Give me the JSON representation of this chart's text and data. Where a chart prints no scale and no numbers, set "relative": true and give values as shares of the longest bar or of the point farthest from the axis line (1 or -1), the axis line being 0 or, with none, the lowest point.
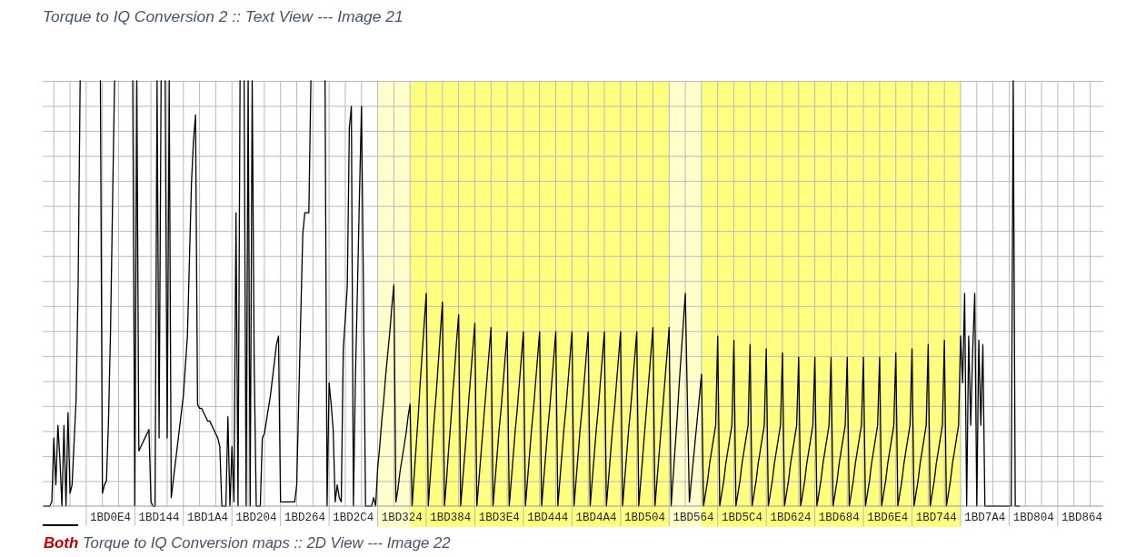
{
  "chart_data": {
    "type": "line",
    "title": "Torque to IQ Conversion 2 :: Text View --- Image 21",
    "annotations": [
      "Both Torque to IQ Conversion maps :: 2D View --- Image 22"
    ],
    "relative": true,
    "color": "#000000",
    "marker": "none",
    "line_style": "solid",
    "grid": true,
    "tick_labels": "x",
    "categories": [
      null,
      null,
      null,
      null,
      null,
      null,
      null,
      null,
      null,
      null,
      null,
      null,
      null,
      null,
      null,
      null,
      null,
      null,
      null,
      null,
      null,
      null,
      null,
      null,
      null,
      null,
      null,
      null,
      null,
      null,
      null,
      null,
      null,
      "1BD0E4",
      null,
      null,
      null,
      null,
      null,
      null,
      null,
      null,
      null,
      null,
      null,
      null,
      null,
      null,
      null,
      null,
      null,
      null,
      null,
      null,
      null,
      null,
      null,
      "1BD144",
      null,
      null,
      null,
      null,
      null,
      null,
      null,
      null,
      null,
      null,
      null,
      null,
      null,
      null,
      null,
      null,
      null,
      null,
      null,
      null,
      null,
      null,
      null,
      "1BD1A4",
      null,
      null,
      null,
      null,
      null,
      null,
      null,
      null,
      null,
      null,
      null,
      null,
      null,
      null,
      null,
      null,
      null,
      null,
      null,
      null,
      null,
      null,
      null,
      "1BD204",
      null,
      null,
      null,
      null,
      null,
      null,
      null,
      null,
      null,
      null,
      null,
      null,
      null,
      null,
      null,
      null,
      null,
      null,
      null,
      null,
      null,
      null,
      null,
      "1BD264",
      null,
      null,
      null,
      null,
      null,
      null,
      null,
      null,
      null,
      null,
      null,
      null,
      null,
      null,
      null,
      null,
      null,
      null,
      null,
      null,
      null,
      null,
      null,
      "1BD2C4",
      null,
      null,
      null,
      null,
      null,
      null,
      null,
      null,
      null,
      null,
      null,
      null,
      null,
      null,
      null,
      null,
      null,
      null,
      null,
      null,
      null,
      null,
      null,
      "1BD324",
      null,
      null,
      null,
      null,
      null,
      null,
      null,
      null,
      null,
      null,
      null,
      null,
      null,
      null,
      null,
      null,
      null,
      null,
      null,
      null,
      null,
      null,
      null,
      "1BD384",
      null,
      null,
      null,
      null,
      null,
      null,
      null,
      null,
      null,
      null,
      null,
      null,
      null,
      null,
      null,
      null,
      null,
      null,
      null,
      null,
      null,
      null,
      null,
      "1BD3E4",
      null,
      null,
      null,
      null,
      null,
      null,
      null,
      null,
      null,
      null,
      null,
      null,
      null,
      null,
      null,
      null,
      null,
      null,
      null,
      null,
      null,
      null,
      null,
      "1BD444",
      null,
      null,
      null,
      null,
      null,
      null,
      null,
      null,
      null,
      null,
      null,
      null,
      null,
      null,
      null,
      null,
      null,
      null,
      null,
      null,
      null,
      null,
      null,
      "1BD4A4",
      null,
      null,
      null,
      null,
      null,
      null,
      null,
      null,
      null,
      null,
      null,
      null,
      null,
      null,
      null,
      null,
      null,
      null,
      null,
      null,
      null,
      null,
      null,
      "1BD504",
      null,
      null,
      null,
      null,
      null,
      null,
      null,
      null,
      null,
      null,
      null,
      null,
      null,
      null,
      null,
      null,
      null,
      null,
      null,
      null,
      null,
      null,
      null,
      "1BD564",
      null,
      null,
      null,
      null,
      null,
      null,
      null,
      null,
      null,
      null,
      null,
      null,
      null,
      null,
      null,
      null,
      null,
      null,
      null,
      null,
      null,
      null,
      null,
      "1BD5C4",
      null,
      null,
      null,
      null,
      null,
      null,
      null,
      null,
      null,
      null,
      null,
      null,
      null,
      null,
      null,
      null,
      null,
      null,
      null,
      null,
      null,
      null,
      null,
      "1BD624",
      null,
      null,
      null,
      null,
      null,
      null,
      null,
      null,
      null,
      null,
      null,
      null,
      null,
      null,
      null,
      null,
      null,
      null,
      null,
      null,
      null,
      null,
      null,
      "1BD684",
      null,
      null,
      null,
      null,
      null,
      null,
      null,
      null,
      null,
      null,
      null,
      null,
      null,
      null,
      null,
      null,
      null,
      null,
      null,
      null,
      null,
      null,
      null,
      "1BD6E4",
      null,
      null,
      null,
      null,
      null,
      null,
      null,
      null,
      null,
      null,
      null,
      null,
      null,
      null,
      null,
      null,
      null,
      null,
      null,
      null,
      null,
      null,
      null,
      "1BD744",
      null,
      null,
      null,
      null,
      null,
      null,
      null,
      null,
      null,
      null,
      null,
      null,
      null,
      null,
      null,
      null,
      null,
      null,
      null,
      null,
      null,
      null,
      null,
      "1BD7A4",
      null,
      null,
      null,
      null,
      null,
      null,
      null,
      null,
      null,
      null,
      null,
      null,
      null,
      null,
      null,
      null,
      null,
      null,
      null,
      null,
      null,
      null,
      null,
      "1BD804",
      null,
      null,
      null,
      null,
      null,
      null,
      null,
      null,
      null,
      null,
      null,
      null,
      null,
      null,
      null,
      null,
      null,
      null,
      null,
      null,
      null,
      null,
      null,
      "1BD864",
      null,
      null,
      null,
      null,
      null,
      null,
      null,
      null,
      null,
      null
    ],
    "values": [
      0,
      0,
      0,
      0,
      0.01,
      0.16,
      0.05,
      0.19,
      0.11,
      0,
      0.19,
      0,
      0.22,
      0.03,
      0.05,
      0.15,
      0.25,
      0.52,
      1,
      null,
      null,
      null,
      null,
      null,
      null,
      null,
      null,
      null,
      1,
      0.03,
      0.05,
      0.06,
      0.2,
      0.41,
      0.71,
      1,
      null,
      null,
      null,
      null,
      null,
      null,
      null,
      null,
      1,
      0,
      1,
      0.13,
      0.14,
      0.15,
      0.16,
      0.17,
      0.18,
      0.01,
      0,
      0,
      1,
      0.16,
      1,
      null,
      1,
      0.16,
      1,
      0.02,
      0.06,
      0.1,
      0.14,
      0.18,
      0.22,
      0.26,
      0.33,
      0.4,
      0.58,
      0.76,
      0.86,
      0.92,
      0.24,
      0.23,
      0.23,
      0.22,
      0.21,
      0.2,
      0.2,
      0.19,
      0.18,
      0.17,
      0.16,
      0.14,
      0,
      0,
      0,
      0.21,
      0,
      0.14,
      0.01,
      0.69,
      0,
      1,
      null,
      1,
      0,
      1,
      0,
      1,
      0.33,
      0,
      0,
      0,
      0.16,
      0.17,
      0.2,
      0.23,
      0.26,
      0.3,
      0.34,
      0.38,
      0.4,
      0.01,
      0.01,
      0.01,
      0.01,
      0.01,
      0.01,
      0.01,
      0.01,
      0.05,
      0.25,
      0.45,
      0.64,
      0.69,
      0.69,
      0.69,
      1,
      null,
      null,
      null,
      null,
      null,
      null,
      1,
      0,
      0.29,
      0.24,
      0.18,
      0.01,
      0.05,
      0.02,
      0.01,
      0.37,
      0.44,
      0.52,
      0.89,
      0.94,
      0,
      0.3,
      0.51,
      0.73,
      0.94,
      0.49,
      0,
      0,
      0,
      0,
      0.02,
      0,
      0.09,
      0.14,
      0.2,
      0.25,
      0.31,
      0.36,
      0.41,
      0.47,
      0.52,
      0.01,
      0.04,
      0.08,
      0.11,
      0.14,
      0.17,
      0.21,
      0.24,
      0,
      0.07,
      0.14,
      0.21,
      0.29,
      0.36,
      0.43,
      0.5,
      0,
      0.07,
      0.14,
      0.21,
      0.27,
      0.34,
      0.41,
      0.48,
      0,
      0.06,
      0.13,
      0.19,
      0.26,
      0.32,
      0.39,
      0.45,
      0,
      0.06,
      0.12,
      0.18,
      0.25,
      0.31,
      0.37,
      0.43,
      0,
      0.06,
      0.12,
      0.18,
      0.24,
      0.3,
      0.36,
      0.42,
      0,
      0.06,
      0.12,
      0.18,
      0.23,
      0.29,
      0.35,
      0.41,
      0,
      0.06,
      0.12,
      0.18,
      0.23,
      0.29,
      0.35,
      0.41,
      0,
      0.06,
      0.12,
      0.18,
      0.23,
      0.29,
      0.35,
      0.41,
      0,
      0.06,
      0.12,
      0.18,
      0.23,
      0.29,
      0.35,
      0.41,
      0,
      0.06,
      0.12,
      0.18,
      0.23,
      0.29,
      0.35,
      0.41,
      0,
      0.06,
      0.12,
      0.18,
      0.23,
      0.29,
      0.35,
      0.41,
      0,
      0.06,
      0.12,
      0.18,
      0.23,
      0.29,
      0.35,
      0.41,
      0,
      0.06,
      0.12,
      0.18,
      0.23,
      0.29,
      0.35,
      0.41,
      0,
      0.06,
      0.12,
      0.18,
      0.23,
      0.29,
      0.35,
      0.41,
      0,
      0.06,
      0.12,
      0.18,
      0.24,
      0.3,
      0.36,
      0.42,
      0,
      0.06,
      0.12,
      0.18,
      0.24,
      0.3,
      0.36,
      0.42,
      0,
      0.07,
      0.14,
      0.21,
      0.29,
      0.36,
      0.43,
      0.5,
      0.25,
      0.01,
      0.06,
      0.11,
      0.16,
      0.21,
      0.26,
      0.31,
      0,
      0.03,
      0.06,
      0.1,
      0.13,
      0.16,
      0.19,
      0.4,
      0,
      0.03,
      0.06,
      0.1,
      0.13,
      0.16,
      0.19,
      0.39,
      0,
      0.03,
      0.06,
      0.1,
      0.13,
      0.16,
      0.19,
      0.38,
      0,
      0.03,
      0.06,
      0.1,
      0.13,
      0.16,
      0.19,
      0.37,
      0,
      0.03,
      0.06,
      0.1,
      0.13,
      0.16,
      0.19,
      0.36,
      0,
      0.03,
      0.06,
      0.1,
      0.13,
      0.16,
      0.19,
      0.35,
      0,
      0.03,
      0.06,
      0.1,
      0.13,
      0.16,
      0.19,
      0.35,
      0,
      0.03,
      0.06,
      0.1,
      0.13,
      0.16,
      0.19,
      0.35,
      0,
      0.03,
      0.06,
      0.1,
      0.13,
      0.16,
      0.19,
      0.35,
      0,
      0.03,
      0.06,
      0.1,
      0.13,
      0.16,
      0.19,
      0.35,
      0,
      0.03,
      0.06,
      0.1,
      0.13,
      0.16,
      0.19,
      0.35,
      0,
      0.03,
      0.06,
      0.1,
      0.13,
      0.16,
      0.19,
      0.36,
      0,
      0.03,
      0.06,
      0.1,
      0.13,
      0.16,
      0.19,
      0.37,
      0,
      0.03,
      0.06,
      0.1,
      0.13,
      0.16,
      0.19,
      0.38,
      0,
      0.03,
      0.06,
      0.1,
      0.13,
      0.16,
      0.19,
      0.39,
      0,
      0.03,
      0.06,
      0.1,
      0.13,
      0.16,
      0.19,
      0.4,
      0.29,
      0.5,
      0,
      0.4,
      0.19,
      0.37,
      0.5,
      0,
      0.39,
      0.19,
      0.38,
      0,
      0,
      0,
      0,
      0,
      0,
      0,
      0,
      0,
      0,
      0,
      0,
      0,
      0,
      1,
      0,
      0,
      0,
      null,
      null,
      null,
      null,
      null,
      null,
      null,
      null,
      null,
      null,
      null,
      null,
      null,
      null,
      null,
      null,
      null,
      null,
      null,
      null,
      null,
      null,
      null,
      null,
      null,
      null,
      null,
      null,
      null,
      null,
      null,
      null,
      null,
      null,
      null,
      null,
      null,
      null,
      null,
      null,
      null
    ]
  }
}
